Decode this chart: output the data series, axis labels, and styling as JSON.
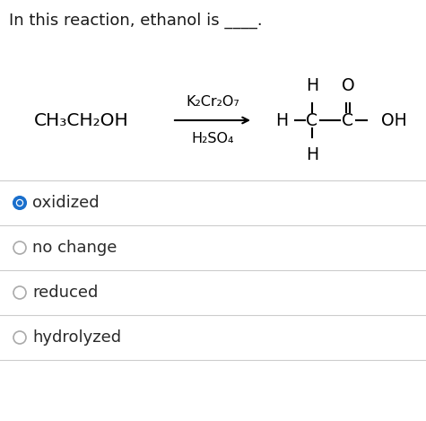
{
  "title_text": "In this reaction, ethanol is ____.",
  "title_color": "#1a1a1a",
  "background_color": "#ffffff",
  "reactant": "CH₃CH₂OH",
  "reagent_top": "K₂Cr₂O₇",
  "reagent_bottom": "H₂SO₄",
  "options": [
    "oxidized",
    "no change",
    "reduced",
    "hydrolyzed"
  ],
  "selected_option": 0,
  "selected_color": "#1a6fcc",
  "unselected_color": "#aaaaaa",
  "divider_color": "#cccccc",
  "option_text_color": "#2a2a2a",
  "font_size_title": 13,
  "font_size_chem": 13.5,
  "font_size_reagent": 11.5,
  "font_size_options": 13
}
